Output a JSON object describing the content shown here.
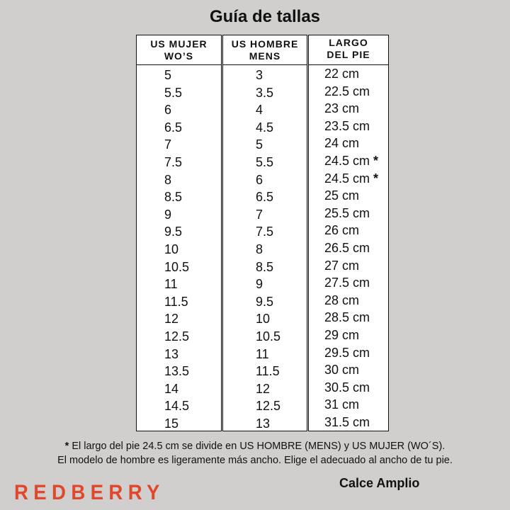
{
  "title": "Guía de tallas",
  "headers": [
    {
      "line1": "US MUJER",
      "line2": "WO’S"
    },
    {
      "line1": "US HOMBRE",
      "line2": "MENS"
    },
    {
      "line1": "LARGO",
      "line2": "DEL PIE"
    }
  ],
  "us_mujer": [
    "5",
    "5.5",
    "6",
    "6.5",
    "7",
    "7.5",
    "8",
    "8.5",
    "9",
    "9.5",
    "10",
    "10.5",
    "11",
    "11.5",
    "12",
    "12.5",
    "13",
    "13.5",
    "14",
    "14.5",
    "15"
  ],
  "us_hombre": [
    "3",
    "3.5",
    "4",
    "4.5",
    "5",
    "5.5",
    "6",
    "6.5",
    "7",
    "7.5",
    "8",
    "8.5",
    "9",
    "9.5",
    "10",
    "10.5",
    "11",
    "11.5",
    "12",
    "12.5",
    "13"
  ],
  "largo_pie": [
    "22 cm",
    "22.5 cm",
    "23 cm",
    "23.5 cm",
    "24 cm",
    "24.5 cm",
    "24.5 cm",
    "25 cm",
    "25.5 cm",
    "26 cm",
    "26.5 cm",
    "27 cm",
    "27.5 cm",
    "28 cm",
    "28.5 cm",
    "29 cm",
    "29.5 cm",
    "30 cm",
    "30.5 cm",
    "31 cm",
    "31.5 cm"
  ],
  "largo_pie_marks": [
    "",
    "",
    "",
    "",
    "",
    "*",
    "*",
    "",
    "",
    "",
    "",
    "",
    "",
    "",
    "",
    "",
    "",
    "",
    "",
    "",
    ""
  ],
  "note": {
    "asterisk": "*",
    "line1": " El largo del pie 24.5 cm se divide en US HOMBRE (MENS) y US MUJER (WO´S).",
    "line2": "El modelo de hombre es ligeramente más ancho. Elige el adecuado al ancho de tu pie."
  },
  "brand": "REDBERRY",
  "fit_label": "Calce Amplio",
  "colors": {
    "background": "#d0cfcd",
    "brand": "#e0472b"
  }
}
